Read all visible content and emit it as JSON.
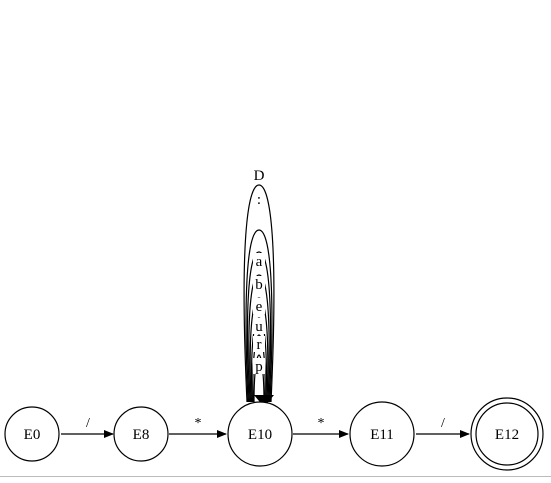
{
  "diagram": {
    "type": "finite-automaton",
    "states": [
      {
        "id": "E0",
        "label": "E0",
        "accepting": false
      },
      {
        "id": "E8",
        "label": "E8",
        "accepting": false
      },
      {
        "id": "E10",
        "label": "E10",
        "accepting": false
      },
      {
        "id": "E11",
        "label": "E11",
        "accepting": false
      },
      {
        "id": "E12",
        "label": "E12",
        "accepting": true
      }
    ],
    "transitions": [
      {
        "from": "E0",
        "to": "E8",
        "label": "/"
      },
      {
        "from": "E8",
        "to": "E10",
        "label": "*"
      },
      {
        "from": "E10",
        "to": "E11",
        "label": "*"
      },
      {
        "from": "E11",
        "to": "E12",
        "label": "/"
      }
    ],
    "self_loops": {
      "state": "E10",
      "labels": [
        "p",
        "r",
        "u",
        "e",
        "b",
        "a",
        ":",
        "D"
      ]
    }
  }
}
